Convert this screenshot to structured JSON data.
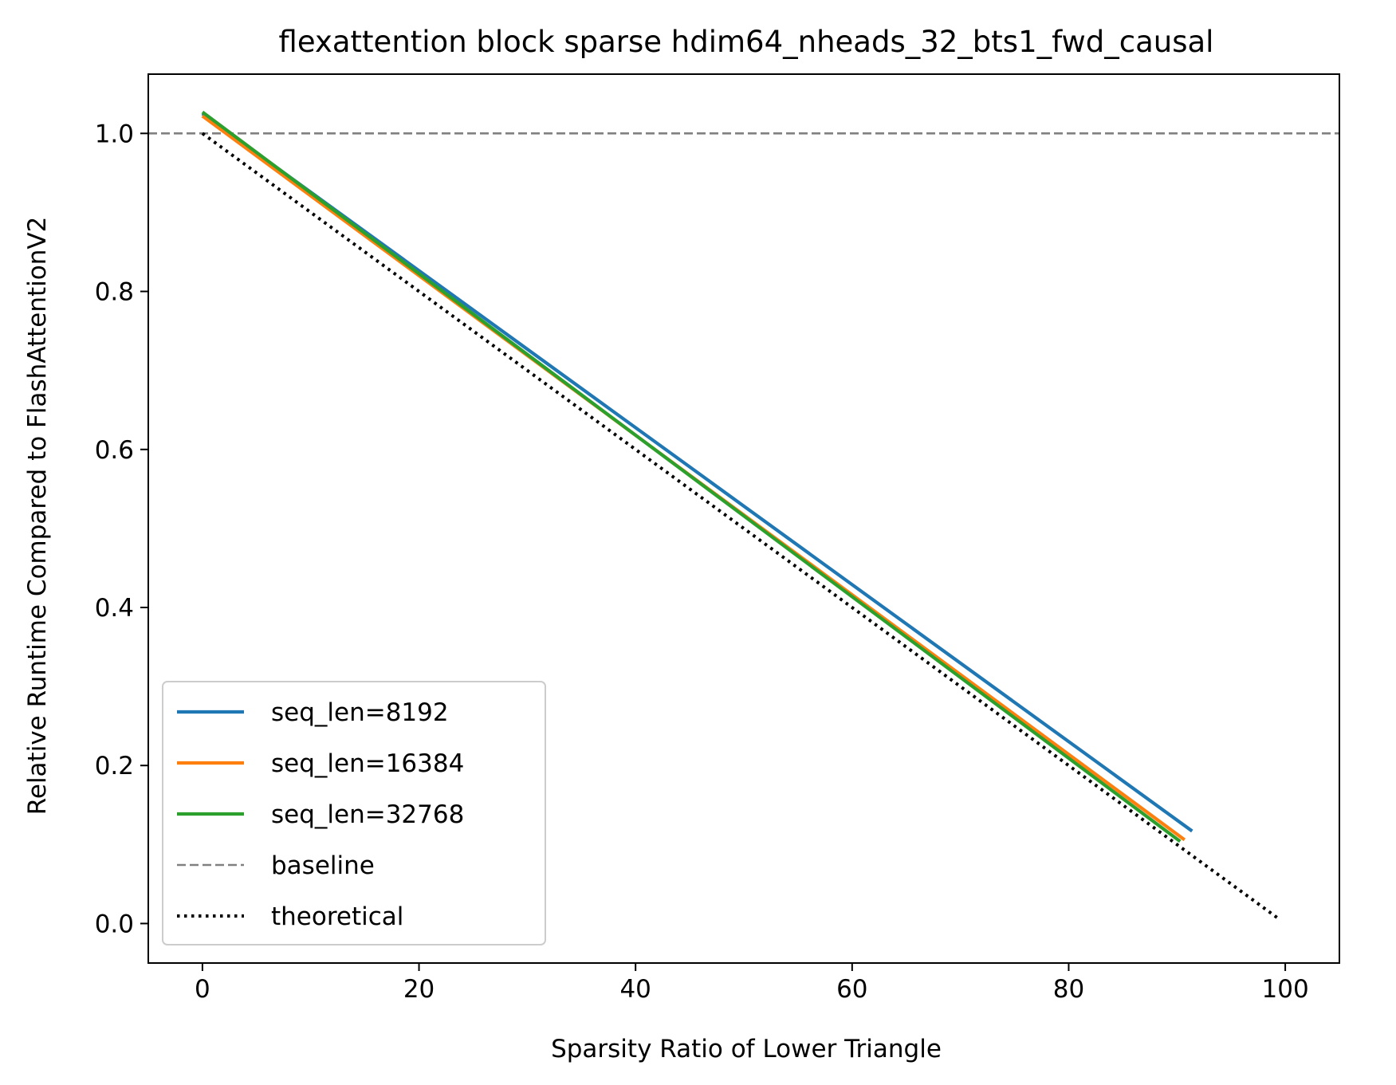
{
  "chart_data": {
    "type": "line",
    "title": "flexattention block sparse hdim64_nheads_32_bts1_fwd_causal",
    "xlabel": "Sparsity Ratio of Lower Triangle",
    "ylabel": "Relative Runtime Compared to FlashAttentionV2",
    "xlim": [
      -5,
      105
    ],
    "ylim": [
      -0.05,
      1.075
    ],
    "xticks": [
      0,
      20,
      40,
      60,
      80,
      100
    ],
    "yticks": [
      0.0,
      0.2,
      0.4,
      0.6,
      0.8,
      1.0
    ],
    "xtick_labels": [
      "0",
      "20",
      "40",
      "60",
      "80",
      "100"
    ],
    "ytick_labels": [
      "0.0",
      "0.2",
      "0.4",
      "0.6",
      "0.8",
      "1.0"
    ],
    "grid": false,
    "legend_position": "lower-left",
    "series": [
      {
        "name": "seq_len=8192",
        "color": "#1f77b4",
        "style": "solid",
        "x": [
          0,
          91.4
        ],
        "y": [
          1.025,
          0.117
        ]
      },
      {
        "name": "seq_len=16384",
        "color": "#ff7f0e",
        "style": "solid",
        "x": [
          0,
          90.7
        ],
        "y": [
          1.022,
          0.106
        ]
      },
      {
        "name": "seq_len=32768",
        "color": "#2ca02c",
        "style": "solid",
        "x": [
          0,
          90.3
        ],
        "y": [
          1.027,
          0.104
        ]
      },
      {
        "name": "baseline",
        "color": "#808080",
        "style": "dashed",
        "x": [
          -5,
          105
        ],
        "y": [
          1.0,
          1.0
        ]
      },
      {
        "name": "theoretical",
        "color": "#000000",
        "style": "dotted",
        "x": [
          0,
          99.4
        ],
        "y": [
          1.0,
          0.006
        ]
      }
    ]
  }
}
